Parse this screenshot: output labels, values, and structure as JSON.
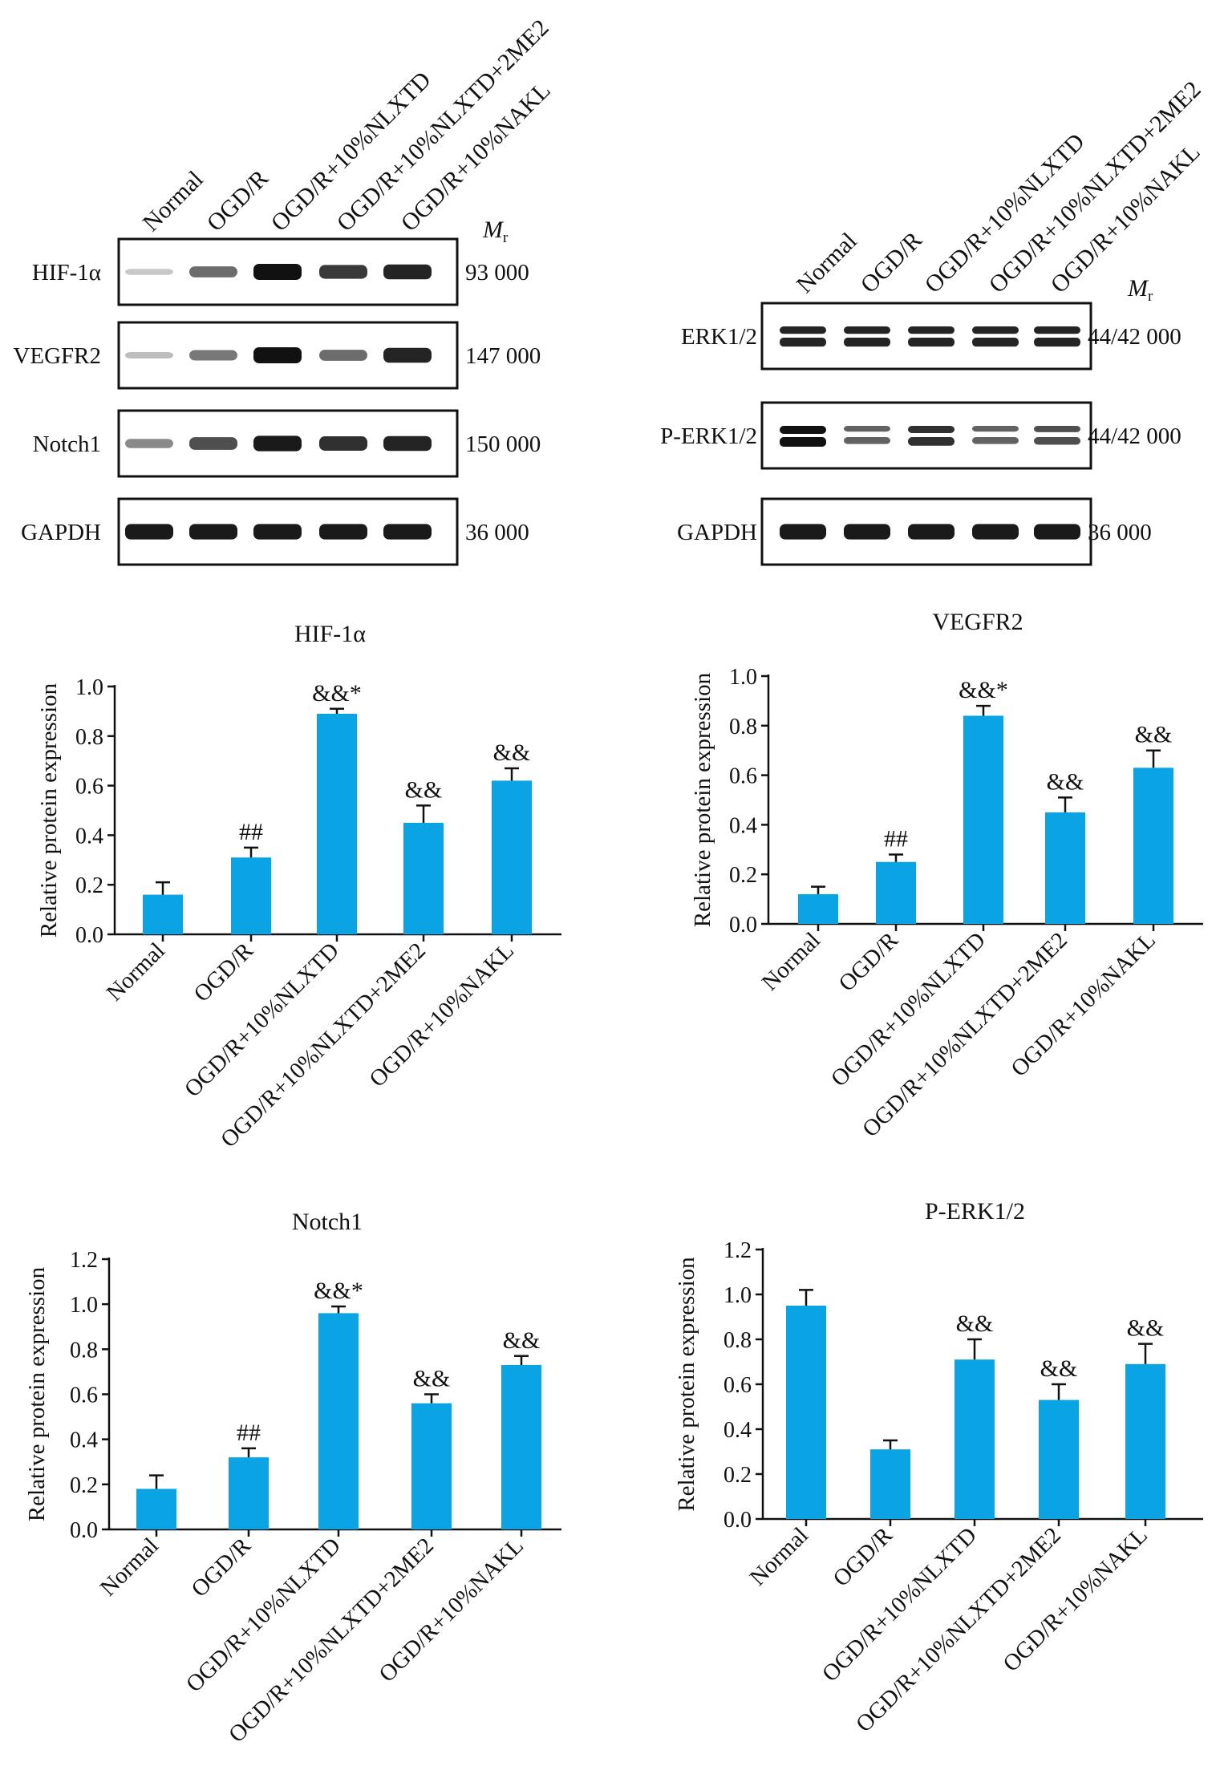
{
  "blots": [
    {
      "lanes": [
        "Normal",
        "OGD/R",
        "OGD/R+10%NLXTD",
        "OGD/R+10%NLXTD+2ME2",
        "OGD/R+10%NAKL"
      ],
      "mr_label": "M",
      "mr_sub": "r",
      "rows": [
        {
          "name": "HIF-1α",
          "mw": "93 000",
          "intensity": [
            0.1,
            0.55,
            1.0,
            0.8,
            0.9
          ]
        },
        {
          "name": "VEGFR2",
          "mw": "147 000",
          "intensity": [
            0.15,
            0.5,
            1.0,
            0.55,
            0.9
          ]
        },
        {
          "name": "Notch1",
          "mw": "150 000",
          "intensity": [
            0.4,
            0.7,
            0.95,
            0.85,
            0.9
          ]
        },
        {
          "name": "GAPDH",
          "mw": "36 000",
          "intensity": [
            0.95,
            0.95,
            0.95,
            0.95,
            0.95
          ]
        }
      ]
    },
    {
      "lanes": [
        "Normal",
        "OGD/R",
        "OGD/R+10%NLXTD",
        "OGD/R+10%NLXTD+2ME2",
        "OGD/R+10%NAKL"
      ],
      "mr_label": "M",
      "mr_sub": "r",
      "rows": [
        {
          "name": "ERK1/2",
          "mw": "44/42 000",
          "intensity": [
            0.9,
            0.9,
            0.9,
            0.9,
            0.9
          ],
          "double": true
        },
        {
          "name": "P-ERK1/2",
          "mw": "44/42 000",
          "intensity": [
            1.0,
            0.6,
            0.85,
            0.6,
            0.7
          ],
          "double": true
        },
        {
          "name": "GAPDH",
          "mw": "36 000",
          "intensity": [
            0.95,
            0.95,
            0.95,
            0.95,
            0.95
          ]
        }
      ]
    }
  ],
  "bar_color": "#0aa3e4",
  "chart_data": [
    {
      "type": "bar",
      "title": "HIF-1α",
      "ylabel": "Relative protein expression",
      "categories": [
        "Normal",
        "OGD/R",
        "OGD/R+10%NLXTD",
        "OGD/R+10%NLXTD+2ME2",
        "OGD/R+10%NAKL"
      ],
      "values": [
        0.16,
        0.31,
        0.89,
        0.45,
        0.62
      ],
      "errors": [
        0.05,
        0.04,
        0.02,
        0.07,
        0.05
      ],
      "annotations": [
        "",
        "##",
        "&&*",
        "&&",
        "&&"
      ],
      "ylim": [
        0,
        1.0
      ],
      "yticks": [
        "0.0",
        "0.2",
        "0.4",
        "0.6",
        "0.8",
        "1.0"
      ]
    },
    {
      "type": "bar",
      "title": "VEGFR2",
      "ylabel": "Relative protein expression",
      "categories": [
        "Normal",
        "OGD/R",
        "OGD/R+10%NLXTD",
        "OGD/R+10%NLXTD+2ME2",
        "OGD/R+10%NAKL"
      ],
      "values": [
        0.12,
        0.25,
        0.84,
        0.45,
        0.63
      ],
      "errors": [
        0.03,
        0.03,
        0.04,
        0.06,
        0.07
      ],
      "annotations": [
        "",
        "##",
        "&&*",
        "&&",
        "&&"
      ],
      "ylim": [
        0,
        1.0
      ],
      "yticks": [
        "0.0",
        "0.2",
        "0.4",
        "0.6",
        "0.8",
        "1.0"
      ]
    },
    {
      "type": "bar",
      "title": "Notch1",
      "ylabel": "Relative protein expression",
      "categories": [
        "Normal",
        "OGD/R",
        "OGD/R+10%NLXTD",
        "OGD/R+10%NLXTD+2ME2",
        "OGD/R+10%NAKL"
      ],
      "values": [
        0.18,
        0.32,
        0.96,
        0.56,
        0.73
      ],
      "errors": [
        0.06,
        0.04,
        0.03,
        0.04,
        0.04
      ],
      "annotations": [
        "",
        "##",
        "&&*",
        "&&",
        "&&"
      ],
      "ylim": [
        0,
        1.2
      ],
      "yticks": [
        "0.0",
        "0.2",
        "0.4",
        "0.6",
        "0.8",
        "1.0",
        "1.2"
      ]
    },
    {
      "type": "bar",
      "title": "P-ERK1/2",
      "ylabel": "Relative protein expression",
      "categories": [
        "Normal",
        "OGD/R",
        "OGD/R+10%NLXTD",
        "OGD/R+10%NLXTD+2ME2",
        "OGD/R+10%NAKL"
      ],
      "values": [
        0.95,
        0.31,
        0.71,
        0.53,
        0.69
      ],
      "errors": [
        0.07,
        0.04,
        0.09,
        0.07,
        0.09
      ],
      "annotations": [
        "",
        "",
        "&&",
        "&&",
        "&&"
      ],
      "ylim": [
        0,
        1.2
      ],
      "yticks": [
        "0.0",
        "0.2",
        "0.4",
        "0.6",
        "0.8",
        "1.0",
        "1.2"
      ]
    }
  ]
}
